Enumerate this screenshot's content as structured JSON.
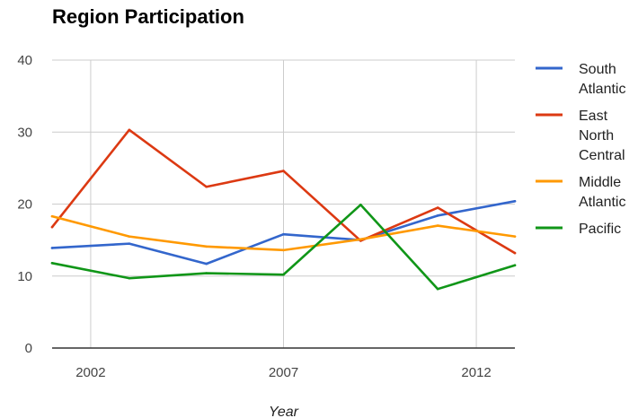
{
  "chart_data": {
    "type": "line",
    "title": "Region Participation",
    "xlabel": "Year",
    "ylabel": "",
    "xlim": [
      2001,
      2013
    ],
    "ylim": [
      0,
      40
    ],
    "x_ticks": [
      2002,
      2007,
      2012
    ],
    "y_ticks": [
      0,
      10,
      20,
      30,
      40
    ],
    "grid": true,
    "legend_position": "right",
    "x": [
      2001,
      2003,
      2005,
      2007,
      2009,
      2011,
      2013
    ],
    "series": [
      {
        "name": "South Atlantic",
        "legend_lines": [
          "South",
          "Atlantic"
        ],
        "color": "#3366cc",
        "values": [
          13.9,
          14.5,
          11.7,
          15.8,
          15.0,
          18.4,
          20.4
        ]
      },
      {
        "name": "East North Central",
        "legend_lines": [
          "East",
          "North",
          "Central"
        ],
        "color": "#dc3912",
        "values": [
          16.8,
          30.3,
          22.4,
          24.6,
          14.9,
          19.5,
          13.2
        ]
      },
      {
        "name": "Middle Atlantic",
        "legend_lines": [
          "Middle",
          "Atlantic"
        ],
        "color": "#ff9900",
        "values": [
          18.3,
          15.5,
          14.1,
          13.6,
          15.1,
          17.0,
          15.5
        ]
      },
      {
        "name": "Pacific",
        "legend_lines": [
          "Pacific"
        ],
        "color": "#109618",
        "values": [
          11.8,
          9.7,
          10.4,
          10.2,
          19.9,
          8.2,
          11.5
        ]
      }
    ]
  }
}
